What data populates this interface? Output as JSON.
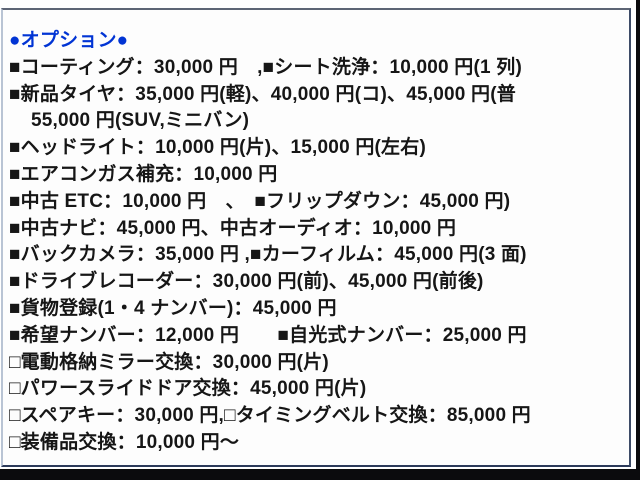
{
  "panel": {
    "title": "●オプション●",
    "title_color": "#0134d4",
    "text_color": "#161616",
    "lines": [
      "■コーティング：30,000 円　,■シート洗浄：10,000 円(1 列)",
      "■新品タイヤ：35,000 円(軽)、40,000 円(コ)、45,000 円(普",
      "55,000 円(SUV,ミニバン)",
      "■ヘッドライト：10,000 円(片)、15,000 円(左右)",
      "■エアコンガス補充：10,000 円",
      "■中古 ETC：10,000 円　、　■フリップダウン：45,000 円)",
      "■中古ナビ：45,000 円、中古オーディオ：10,000 円",
      "■バックカメラ：35,000 円 ,■カーフィルム：45,000 円(3 面)",
      "■ドライブレコーダー：30,000 円(前)、45,000 円(前後)",
      "■貨物登録(1・4 ナンバー)：45,000 円",
      "■希望ナンバー：12,000 円　　■自光式ナンバー：25,000 円",
      "□電動格納ミラー交換：30,000 円(片)",
      "□パワースライドドア交換：45,000 円(片)",
      "□スペアキー：30,000 円,□タイミングベルト交換：85,000 円",
      "□装備品交換：10,000 円～"
    ]
  }
}
